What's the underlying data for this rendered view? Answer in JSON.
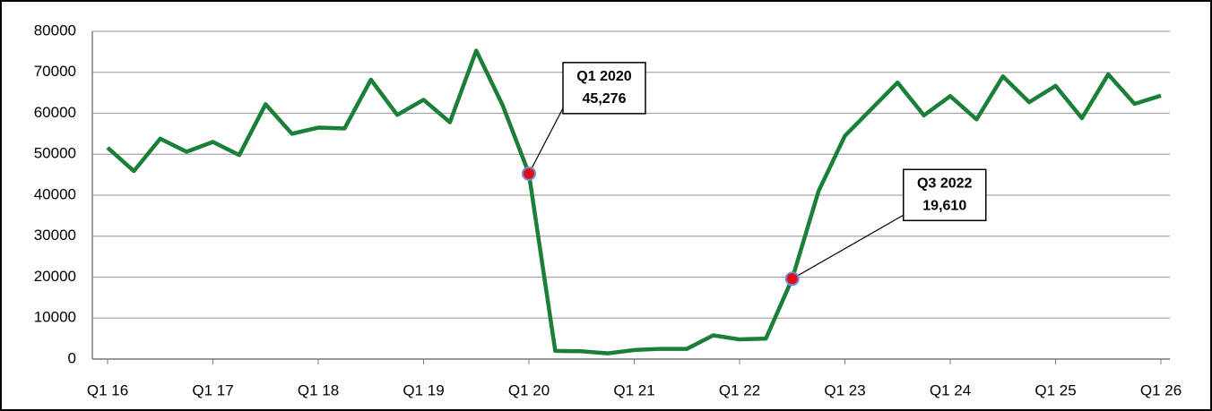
{
  "chart_data": {
    "type": "line",
    "categories": [
      "Q1 16",
      null,
      null,
      null,
      "Q1 17",
      null,
      null,
      null,
      "Q1 18",
      null,
      null,
      null,
      "Q1 19",
      null,
      null,
      null,
      "Q1 20",
      null,
      null,
      null,
      "Q1 21",
      null,
      null,
      null,
      "Q1 22",
      null,
      null,
      null,
      "Q1 23",
      null,
      null,
      null,
      "Q1 24",
      null,
      null,
      null,
      "Q1 25",
      null,
      null,
      null,
      "Q1 26"
    ],
    "series": [
      {
        "color": "#1a7f37",
        "values": [
          51600,
          45900,
          53800,
          50600,
          53000,
          49800,
          62200,
          55000,
          56500,
          56300,
          68200,
          59600,
          63300,
          57800,
          75300,
          62000,
          45276,
          2000,
          1900,
          1400,
          2200,
          2500,
          2500,
          5800,
          4800,
          5000,
          19610,
          41000,
          54500,
          61000,
          67500,
          59500,
          64200,
          58500,
          69000,
          62700,
          66700,
          58800,
          69500,
          62300,
          64300
        ],
        "value_labels": [
          null,
          null,
          null,
          null,
          null,
          null,
          null,
          null,
          null,
          null,
          null,
          null,
          null,
          null,
          null,
          null,
          "45,276",
          null,
          null,
          null,
          null,
          null,
          null,
          null,
          null,
          null,
          "19,610",
          null,
          null,
          null,
          null,
          null,
          null,
          null,
          null,
          null,
          null,
          null,
          null,
          null,
          null
        ],
        "annotation_labels": [
          null,
          null,
          null,
          null,
          null,
          null,
          null,
          null,
          null,
          null,
          null,
          null,
          null,
          null,
          null,
          null,
          "Q1 2020",
          null,
          null,
          null,
          null,
          null,
          null,
          null,
          null,
          null,
          "Q3 2022",
          null,
          null,
          null,
          null,
          null,
          null,
          null,
          null,
          null,
          null,
          null,
          null,
          null,
          null
        ],
        "marker_color": "#e0101a"
      }
    ],
    "ylim": [
      0,
      80000
    ],
    "yticks": [
      0,
      10000,
      20000,
      30000,
      40000,
      50000,
      60000,
      70000,
      80000
    ],
    "grid": true
  }
}
